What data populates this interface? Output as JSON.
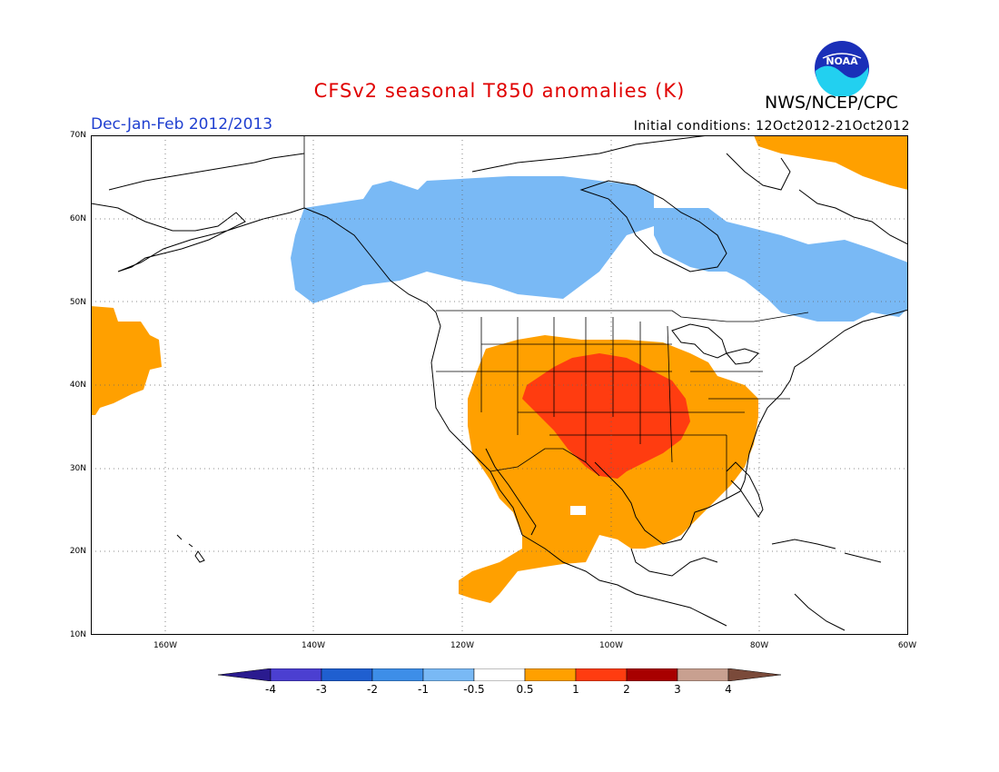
{
  "header": {
    "title": "CFSv2 seasonal T850 anomalies (K)",
    "agency": "NWS/NCEP/CPC",
    "period": "Dec-Jan-Feb 2012/2013",
    "initial_conditions": "Initial conditions: 12Oct2012-21Oct2012",
    "logo_text": "NOAA"
  },
  "map": {
    "lat_labels": [
      "70N",
      "60N",
      "50N",
      "40N",
      "30N",
      "20N",
      "10N"
    ],
    "lon_labels": [
      "160W",
      "140W",
      "120W",
      "100W",
      "80W",
      "60W"
    ],
    "lon_range": [
      -170,
      -60
    ],
    "lat_range": [
      10,
      70
    ]
  },
  "colorbar": {
    "labels": [
      "-4",
      "-3",
      "-2",
      "-1",
      "-0.5",
      "0.5",
      "1",
      "2",
      "3",
      "4"
    ],
    "colors": [
      "#2a1b8f",
      "#4b3fd1",
      "#1f5fd0",
      "#3d8ee8",
      "#79b9f5",
      "#ffffff",
      "#ffa000",
      "#ff3c10",
      "#a80000",
      "#c8a090",
      "#7a4a3a"
    ]
  },
  "anomaly_regions": [
    {
      "name": "western-canada-alaska-cold",
      "category": "-1 to -0.5",
      "color": "#79b9f5"
    },
    {
      "name": "eastern-canada-cold",
      "category": "-1 to -0.5",
      "color": "#79b9f5"
    },
    {
      "name": "pacific-warm",
      "category": "0.5 to 1",
      "color": "#ffa000"
    },
    {
      "name": "conus-mexico-warm",
      "category": "0.5 to 1",
      "color": "#ffa000"
    },
    {
      "name": "central-plains-warm",
      "category": "1 to 2",
      "color": "#ff3c10"
    },
    {
      "name": "greenland-warm",
      "category": "0.5 to 1",
      "color": "#ffa000"
    }
  ]
}
